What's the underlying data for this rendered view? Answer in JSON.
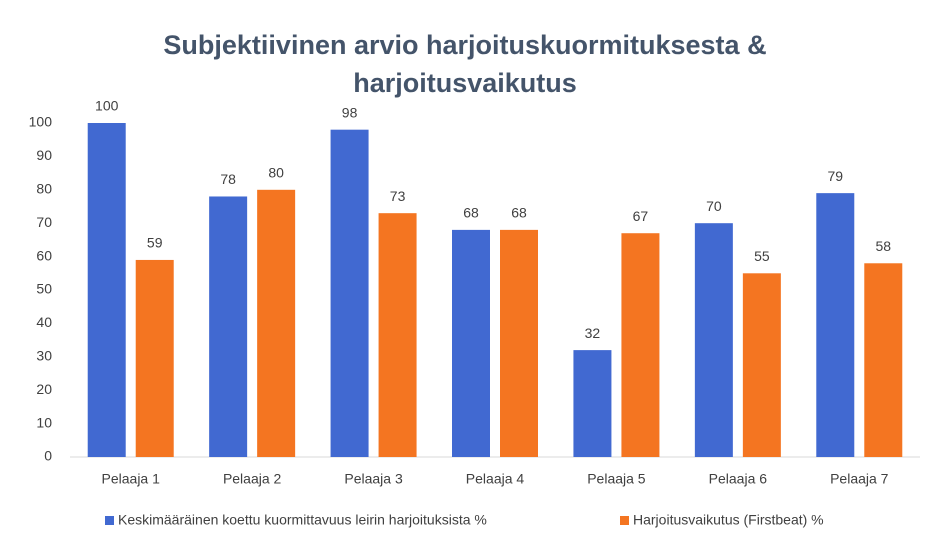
{
  "chart_data": {
    "type": "bar",
    "title": "Subjektiivinen arvio harjoituskuormituksesta & harjoitusvaikutus",
    "categories": [
      "Pelaaja 1",
      "Pelaaja 2",
      "Pelaaja 3",
      "Pelaaja 4",
      "Pelaaja 5",
      "Pelaaja 6",
      "Pelaaja 7"
    ],
    "series": [
      {
        "name": "Keskimääräinen koettu kuormittavuus leirin harjoituksista  %",
        "color": "#4169d1",
        "values": [
          100,
          78,
          98,
          68,
          32,
          70,
          79
        ]
      },
      {
        "name": "Harjoitusvaikutus (Firstbeat) %",
        "color": "#f47521",
        "values": [
          59,
          80,
          73,
          68,
          67,
          55,
          58
        ]
      }
    ],
    "ylim": [
      0,
      100
    ],
    "yticks": [
      0,
      10,
      20,
      30,
      40,
      50,
      60,
      70,
      80,
      90,
      100
    ],
    "grid": false,
    "legend": "bottom"
  }
}
